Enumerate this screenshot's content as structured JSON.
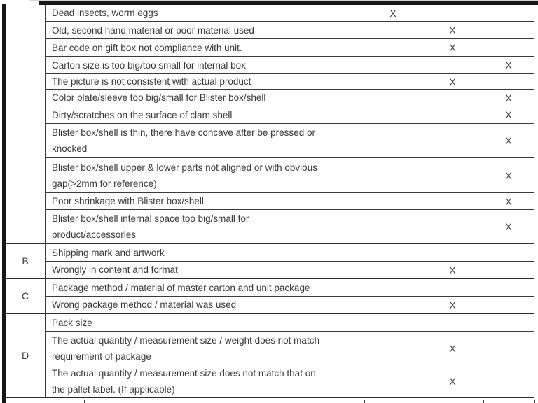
{
  "colors": {
    "background": "#ffffff",
    "border": "#3b3b3b",
    "heavy_border": "#161616",
    "text": "#3a3a3a"
  },
  "table": {
    "letters": {
      "a": "",
      "b": "B",
      "c": "C",
      "d": "D"
    },
    "rows": [
      {
        "text": "Dead insects, worm eggs",
        "c1": "X",
        "c2": "",
        "c3": ""
      },
      {
        "text": "Old, second hand material or poor material used",
        "c1": "",
        "c2": "X",
        "c3": ""
      },
      {
        "text": "Bar code on gift box not compliance with unit.",
        "c1": "",
        "c2": "X",
        "c3": ""
      },
      {
        "text": "Carton size is too big/too small for internal box",
        "c1": "",
        "c2": "",
        "c3": "X"
      },
      {
        "text": "The picture is not consistent with actual product",
        "c1": "",
        "c2": "X",
        "c3": ""
      },
      {
        "text": "Color plate/sleeve too big/small for Blister box/shell",
        "c1": "",
        "c2": "",
        "c3": "X"
      },
      {
        "text": "Dirty/scratches on the surface of clam shell",
        "c1": "",
        "c2": "",
        "c3": "X"
      },
      {
        "text": "Blister box/shell is thin, there have concave after be pressed or\nknocked",
        "c1": "",
        "c2": "",
        "c3": "X"
      },
      {
        "text": "Blister box/shell upper & lower parts not aligned or with obvious\ngap(>2mm for reference)",
        "c1": "",
        "c2": "",
        "c3": "X"
      },
      {
        "text": "Poor shrinkage with Blister box/shell",
        "c1": "",
        "c2": "",
        "c3": "X"
      },
      {
        "text": "Blister box/shell internal space too big/small for\nproduct/accessories",
        "c1": "",
        "c2": "",
        "c3": "X"
      },
      {
        "text": "Shipping mark and artwork",
        "merged": true
      },
      {
        "text": "Wrongly in content and format",
        "c1": "",
        "c2": "X",
        "c3": ""
      },
      {
        "text": "Package method / material of master carton and unit package",
        "merged": true
      },
      {
        "text": "Wrong package method / material was used",
        "c1": "",
        "c2": "X",
        "c3": ""
      },
      {
        "text": "Pack size",
        "merged": true
      },
      {
        "text": "The actual quantity / measurement size / weight does not match\nrequirement of package",
        "c1": "",
        "c2": "X",
        "c3": ""
      },
      {
        "text": "The actual quantity / measurement size does not match that on\nthe pallet label. (If applicable)",
        "c1": "",
        "c2": "X",
        "c3": ""
      }
    ]
  }
}
